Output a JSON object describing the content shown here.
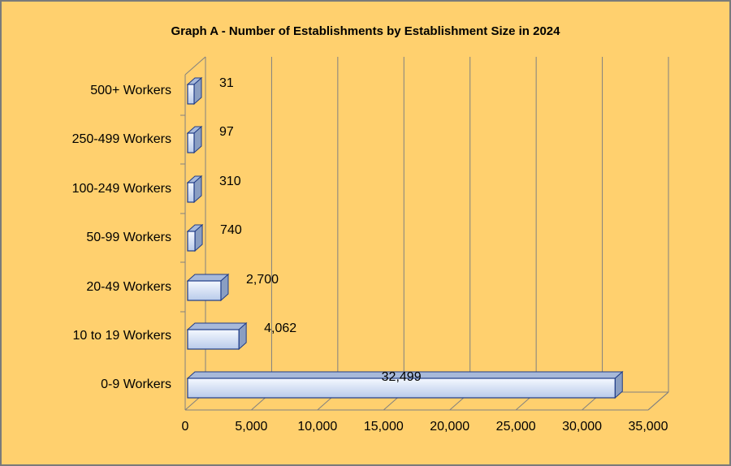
{
  "chart_data": {
    "type": "bar",
    "orientation": "horizontal",
    "title": "Graph A - Number of Establishments by Establishment Size in 2024",
    "categories": [
      "500+ Workers",
      "250-499 Workers",
      "100-249 Workers",
      "50-99 Workers",
      "20-49 Workers",
      "10 to 19 Workers",
      "0-9 Workers"
    ],
    "values": [
      31,
      97,
      310,
      740,
      2700,
      4062,
      32499
    ],
    "data_labels": [
      "31",
      "97",
      "310",
      "740",
      "2,700",
      "4,062",
      "32,499"
    ],
    "x_ticks": [
      0,
      5000,
      10000,
      15000,
      20000,
      25000,
      30000,
      35000
    ],
    "x_tick_labels": [
      "0",
      "5,000",
      "10,000",
      "15,000",
      "20,000",
      "25,000",
      "30,000",
      "35,000"
    ],
    "xlim": [
      0,
      35000
    ],
    "grid": "vertical",
    "style": "3d",
    "colors": {
      "background": "#FFD06E",
      "bar_fill_light": "#F4F8FF",
      "bar_fill_dark": "#B9CBEA",
      "bar_side": "#8A9EC2",
      "bar_top": "#A7B9DA",
      "bar_stroke": "#1F3C88",
      "grid": "#808080"
    }
  }
}
